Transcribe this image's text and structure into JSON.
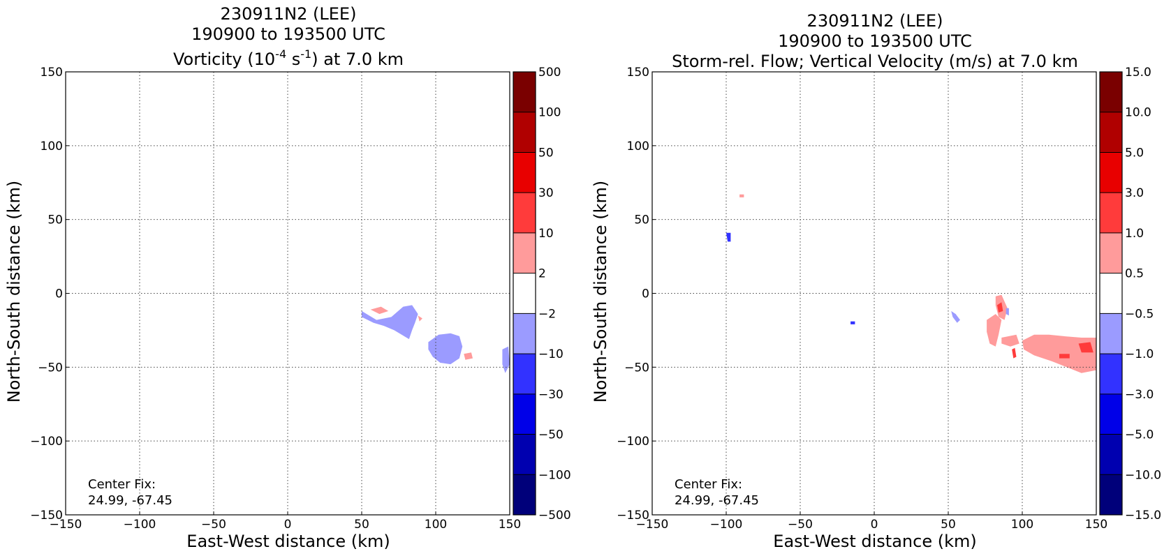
{
  "chart_data": [
    {
      "type": "heatmap",
      "title_lines": [
        "230911N2 (LEE)",
        "190900 to 193500 UTC"
      ],
      "title_line3": {
        "prefix": "Vorticity (10",
        "sup1": "-4",
        "mid": " s",
        "sup2": "-1",
        "suffix": ") at 7.0 km"
      },
      "xlabel": "East-West distance (km)",
      "ylabel": "North-South distance (km)",
      "xlim": [
        -150,
        150
      ],
      "ylim": [
        -150,
        150
      ],
      "xticks": [
        -150,
        -100,
        -50,
        0,
        50,
        100,
        150
      ],
      "yticks": [
        -150,
        -100,
        -50,
        0,
        50,
        100,
        150
      ],
      "xtick_labels": [
        "−150",
        "−100",
        "−50",
        "0",
        "50",
        "100",
        "150"
      ],
      "ytick_labels": [
        "−150",
        "−100",
        "−50",
        "0",
        "50",
        "100",
        "150"
      ],
      "grid": true,
      "annotation_lines": [
        "Center Fix:",
        "24.99, -67.45"
      ],
      "colorbar": {
        "labels": [
          "500",
          "100",
          "50",
          "30",
          "10",
          "2",
          "−2",
          "−10",
          "−30",
          "−50",
          "−100",
          "−500"
        ],
        "colors": [
          "#7a0000",
          "#b00000",
          "#e80000",
          "#ff3b3b",
          "#ff9b9b",
          "#ffffff",
          "#9b9bff",
          "#3232ff",
          "#0000e8",
          "#0000b0",
          "#00007a"
        ]
      },
      "regions": [
        {
          "level": "-2..-10",
          "points": [
            [
              50,
              -12
            ],
            [
              60,
              -18
            ],
            [
              70,
              -16
            ],
            [
              78,
              -9
            ],
            [
              84,
              -8
            ],
            [
              88,
              -14
            ],
            [
              86,
              -20
            ],
            [
              84,
              -25
            ],
            [
              82,
              -31
            ],
            [
              77,
              -28
            ],
            [
              72,
              -25
            ],
            [
              65,
              -22
            ],
            [
              58,
              -20
            ],
            [
              50,
              -16
            ]
          ]
        },
        {
          "level": "-2..-10",
          "points": [
            [
              95,
              -33
            ],
            [
              102,
              -28
            ],
            [
              110,
              -27
            ],
            [
              116,
              -29
            ],
            [
              118,
              -36
            ],
            [
              116,
              -44
            ],
            [
              110,
              -48
            ],
            [
              103,
              -47
            ],
            [
              98,
              -43
            ],
            [
              95,
              -38
            ]
          ]
        },
        {
          "level": "-2..-10",
          "points": [
            [
              145,
              -38
            ],
            [
              149,
              -36
            ],
            [
              150,
              -48
            ],
            [
              147,
              -54
            ],
            [
              145,
              -48
            ]
          ]
        },
        {
          "level": "2..10",
          "points": [
            [
              56,
              -11
            ],
            [
              63,
              -9
            ],
            [
              68,
              -12
            ],
            [
              62,
              -14
            ]
          ]
        },
        {
          "level": "2..10",
          "points": [
            [
              119,
              -41
            ],
            [
              124,
              -40
            ],
            [
              125,
              -44
            ],
            [
              120,
              -45
            ]
          ]
        },
        {
          "level": "2..10",
          "points": [
            [
              88,
              -15
            ],
            [
              91,
              -17
            ],
            [
              89,
              -19
            ]
          ]
        }
      ]
    },
    {
      "type": "heatmap",
      "title_lines": [
        "230911N2 (LEE)",
        "190900 to 193500 UTC",
        "Storm-rel. Flow; Vertical Velocity (m/s) at 7.0 km"
      ],
      "xlabel": "East-West distance (km)",
      "ylabel": "North-South distance (km)",
      "xlim": [
        -150,
        150
      ],
      "ylim": [
        -150,
        150
      ],
      "xticks": [
        -150,
        -100,
        -50,
        0,
        50,
        100,
        150
      ],
      "yticks": [
        -150,
        -100,
        -50,
        0,
        50,
        100,
        150
      ],
      "xtick_labels": [
        "−150",
        "−100",
        "−50",
        "0",
        "50",
        "100",
        "150"
      ],
      "ytick_labels": [
        "−150",
        "−100",
        "−50",
        "0",
        "50",
        "100",
        "150"
      ],
      "grid": true,
      "annotation_lines": [
        "Center Fix:",
        "24.99, -67.45"
      ],
      "colorbar": {
        "labels": [
          "15.0",
          "10.0",
          "5.0",
          "3.0",
          "1.0",
          "0.5",
          "−0.5",
          "−1.0",
          "−3.0",
          "−5.0",
          "−10.0",
          "−15.0"
        ],
        "colors": [
          "#7a0000",
          "#b00000",
          "#e80000",
          "#ff3b3b",
          "#ff9b9b",
          "#ffffff",
          "#9b9bff",
          "#3232ff",
          "#0000e8",
          "#0000b0",
          "#00007a"
        ]
      },
      "regions": [
        {
          "level": "0.5..1.0",
          "points": [
            [
              76,
              -18
            ],
            [
              82,
              -14
            ],
            [
              86,
              -18
            ],
            [
              84,
              -28
            ],
            [
              82,
              -36
            ],
            [
              78,
              -34
            ],
            [
              76,
              -26
            ]
          ]
        },
        {
          "level": "0.5..1.0",
          "points": [
            [
              100,
              -32
            ],
            [
              108,
              -28
            ],
            [
              118,
              -28
            ],
            [
              128,
              -29
            ],
            [
              140,
              -30
            ],
            [
              150,
              -30
            ],
            [
              150,
              -52
            ],
            [
              140,
              -54
            ],
            [
              130,
              -50
            ],
            [
              120,
              -46
            ],
            [
              108,
              -42
            ],
            [
              101,
              -38
            ]
          ]
        },
        {
          "level": "0.5..1.0",
          "points": [
            [
              82,
              -2
            ],
            [
              86,
              -1
            ],
            [
              90,
              -10
            ],
            [
              88,
              -18
            ],
            [
              84,
              -16
            ],
            [
              82,
              -8
            ]
          ]
        },
        {
          "level": "0.5..1.0",
          "points": [
            [
              86,
              -30
            ],
            [
              96,
              -28
            ],
            [
              98,
              -34
            ],
            [
              92,
              -36
            ],
            [
              86,
              -34
            ]
          ]
        },
        {
          "level": "1.0..3.0",
          "points": [
            [
              83,
              -8
            ],
            [
              86,
              -6
            ],
            [
              87,
              -12
            ],
            [
              84,
              -13
            ]
          ]
        },
        {
          "level": "1.0..3.0",
          "points": [
            [
              93,
              -38
            ],
            [
              95,
              -37
            ],
            [
              96,
              -43
            ],
            [
              94,
              -44
            ]
          ]
        },
        {
          "level": "1.0..3.0",
          "points": [
            [
              138,
              -34
            ],
            [
              146,
              -33
            ],
            [
              148,
              -40
            ],
            [
              140,
              -40
            ]
          ]
        },
        {
          "level": "1.0..3.0",
          "points": [
            [
              125,
              -41
            ],
            [
              132,
              -41
            ],
            [
              132,
              -44
            ],
            [
              125,
              -44
            ]
          ]
        },
        {
          "level": "-0.5..-1.0",
          "points": [
            [
              52,
              -12
            ],
            [
              55,
              -14
            ],
            [
              58,
              -18
            ],
            [
              56,
              -20
            ],
            [
              53,
              -16
            ]
          ]
        },
        {
          "level": "-0.5..-1.0",
          "points": [
            [
              89,
              -10
            ],
            [
              91,
              -10
            ],
            [
              91,
              -15
            ],
            [
              89,
              -14
            ]
          ]
        },
        {
          "level": "-1.0..-3.0",
          "points": [
            [
              -100,
              41
            ],
            [
              -97,
              41
            ],
            [
              -97,
              35
            ],
            [
              -99,
              35
            ]
          ]
        },
        {
          "level": "-1.0..-3.0",
          "points": [
            [
              -16,
              -19
            ],
            [
              -13,
              -19
            ],
            [
              -13,
              -21
            ],
            [
              -16,
              -21
            ]
          ]
        },
        {
          "level": "0.5..1.0",
          "points": [
            [
              -91,
              67
            ],
            [
              -88,
              67
            ],
            [
              -88,
              65
            ],
            [
              -91,
              65
            ]
          ]
        }
      ]
    }
  ]
}
